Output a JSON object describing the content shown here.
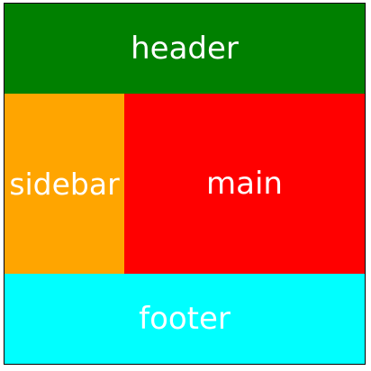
{
  "regions": {
    "header": {
      "label": "header",
      "color": "#008000"
    },
    "sidebar": {
      "label": "sidebar",
      "color": "#FFA500"
    },
    "main": {
      "label": "main",
      "color": "#FF0000"
    },
    "footer": {
      "label": "footer",
      "color": "#00FFFF"
    }
  }
}
